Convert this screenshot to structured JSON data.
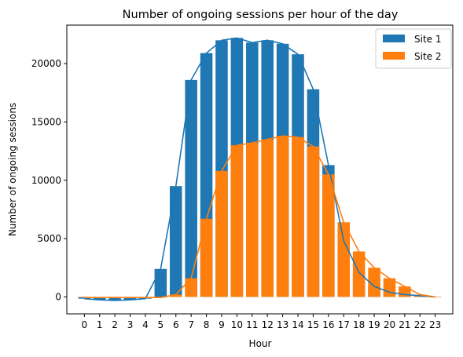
{
  "chart_data": {
    "type": "bar",
    "title": "Number of ongoing sessions per hour of the day",
    "xlabel": "Hour",
    "ylabel": "Number of ongoing sessions",
    "categories": [
      "0",
      "1",
      "2",
      "3",
      "4",
      "5",
      "6",
      "7",
      "8",
      "9",
      "10",
      "11",
      "12",
      "13",
      "14",
      "15",
      "16",
      "17",
      "18",
      "19",
      "20",
      "21",
      "22",
      "23"
    ],
    "x": [
      0,
      1,
      2,
      3,
      4,
      5,
      6,
      7,
      8,
      9,
      10,
      11,
      12,
      13,
      14,
      15,
      16,
      17,
      18,
      19,
      20,
      21,
      22,
      23
    ],
    "yticks": [
      0,
      5000,
      10000,
      15000,
      20000
    ],
    "ylim": [
      -1450,
      23300
    ],
    "xlim": [
      -1.15,
      24.15
    ],
    "grid": false,
    "legend_position": "top-right",
    "series": [
      {
        "name": "Site 1",
        "color": "#1f77b4",
        "values": [
          -150,
          -250,
          -300,
          -250,
          -150,
          2400,
          9500,
          18600,
          20900,
          22000,
          22200,
          21800,
          22000,
          21700,
          20800,
          17800,
          11300,
          4800,
          2100,
          900,
          400,
          200,
          100,
          0
        ]
      },
      {
        "name": "Site 2",
        "color": "#ff7f0e",
        "values": [
          -50,
          -50,
          -50,
          -50,
          -50,
          -50,
          200,
          1600,
          6700,
          10800,
          13000,
          13200,
          13500,
          13800,
          13700,
          12900,
          10500,
          6400,
          3900,
          2500,
          1600,
          900,
          200,
          0
        ]
      }
    ]
  }
}
